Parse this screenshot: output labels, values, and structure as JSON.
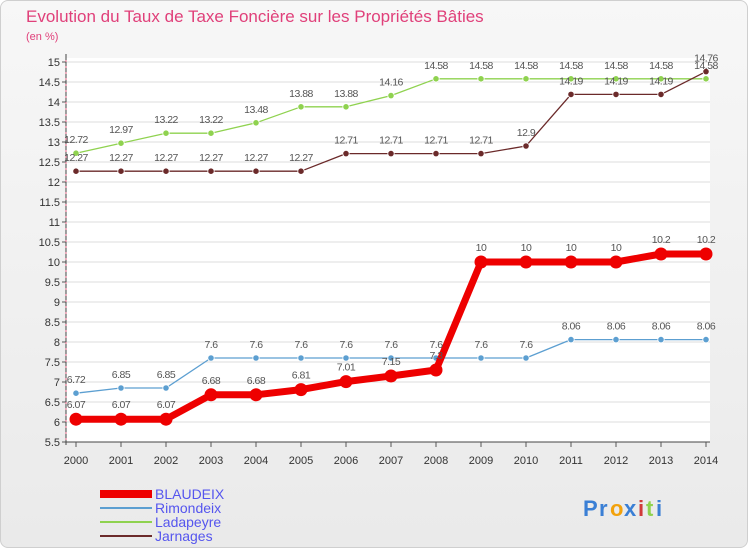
{
  "chart_data": {
    "type": "line",
    "title": "Evolution du Taux de Taxe Foncière sur les Propriétés Bâties",
    "subtitle": "(en %)",
    "xlabel": "",
    "ylabel": "",
    "x": [
      "2000",
      "2001",
      "2002",
      "2003",
      "2004",
      "2005",
      "2006",
      "2007",
      "2008",
      "2009",
      "2010",
      "2011",
      "2012",
      "2013",
      "2014"
    ],
    "ylim": [
      5.5,
      15
    ],
    "yticks": [
      "5.5",
      "6",
      "6.5",
      "7",
      "7.5",
      "8",
      "8.5",
      "9",
      "9.5",
      "10",
      "10.5",
      "11",
      "11.5",
      "12",
      "12.5",
      "13",
      "13.5",
      "14",
      "14.5",
      "15"
    ],
    "series": [
      {
        "name": "BLAUDEIX",
        "color": "#ee0000",
        "text_color": "#5555ee",
        "values": [
          6.07,
          6.07,
          6.07,
          6.68,
          6.68,
          6.81,
          7.01,
          7.15,
          7.3,
          10,
          10,
          10,
          10,
          10.2,
          10.2
        ],
        "labels": [
          "6.07",
          "6.07",
          "6.07",
          "6.68",
          "6.68",
          "6.81",
          "7.01",
          "7.15",
          "7.3",
          "10",
          "10",
          "10",
          "10",
          "10.2",
          "10.2"
        ]
      },
      {
        "name": "Rimondeix",
        "color": "#5c9fd1",
        "text_color": "#5555ee",
        "values": [
          6.72,
          6.85,
          6.85,
          7.6,
          7.6,
          7.6,
          7.6,
          7.6,
          7.6,
          7.6,
          7.6,
          8.06,
          8.06,
          8.06,
          8.06
        ],
        "labels": [
          "6.72",
          "6.85",
          "6.85",
          "7.6",
          "7.6",
          "7.6",
          "7.6",
          "7.6",
          "7.6",
          "7.6",
          "7.6",
          "8.06",
          "8.06",
          "8.06",
          "8.06"
        ]
      },
      {
        "name": "Ladapeyre",
        "color": "#8fd24f",
        "text_color": "#5555ee",
        "values": [
          12.72,
          12.97,
          13.22,
          13.22,
          13.48,
          13.88,
          13.88,
          14.16,
          14.58,
          14.58,
          14.58,
          14.58,
          14.58,
          14.58,
          14.58
        ],
        "labels": [
          "12.72",
          "12.97",
          "13.22",
          "13.22",
          "13.48",
          "13.88",
          "13.88",
          "14.16",
          "14.58",
          "14.58",
          "14.58",
          "14.58",
          "14.58",
          "14.58",
          "14.58"
        ]
      },
      {
        "name": "Jarnages",
        "color": "#6b2a2a",
        "text_color": "#5555ee",
        "values": [
          12.27,
          12.27,
          12.27,
          12.27,
          12.27,
          12.27,
          12.71,
          12.71,
          12.71,
          12.71,
          12.9,
          14.19,
          14.19,
          14.19,
          14.76
        ],
        "labels": [
          "12.27",
          "12.27",
          "12.27",
          "12.27",
          "12.27",
          "12.27",
          "12.71",
          "12.71",
          "12.71",
          "12.71",
          "12.9",
          "14.19",
          "14.19",
          "14.19",
          "14.76"
        ]
      }
    ],
    "legend_position": "bottom-left"
  },
  "logo": {
    "text": "Proxiti",
    "letters": [
      "P",
      "r",
      "o",
      "x",
      "i",
      "t",
      "i"
    ],
    "colors": [
      "#3a7fd5",
      "#3a7fd5",
      "#f2a20c",
      "#3a7fd5",
      "#d13a3a",
      "#8fd24f",
      "#3a7fd5"
    ]
  }
}
